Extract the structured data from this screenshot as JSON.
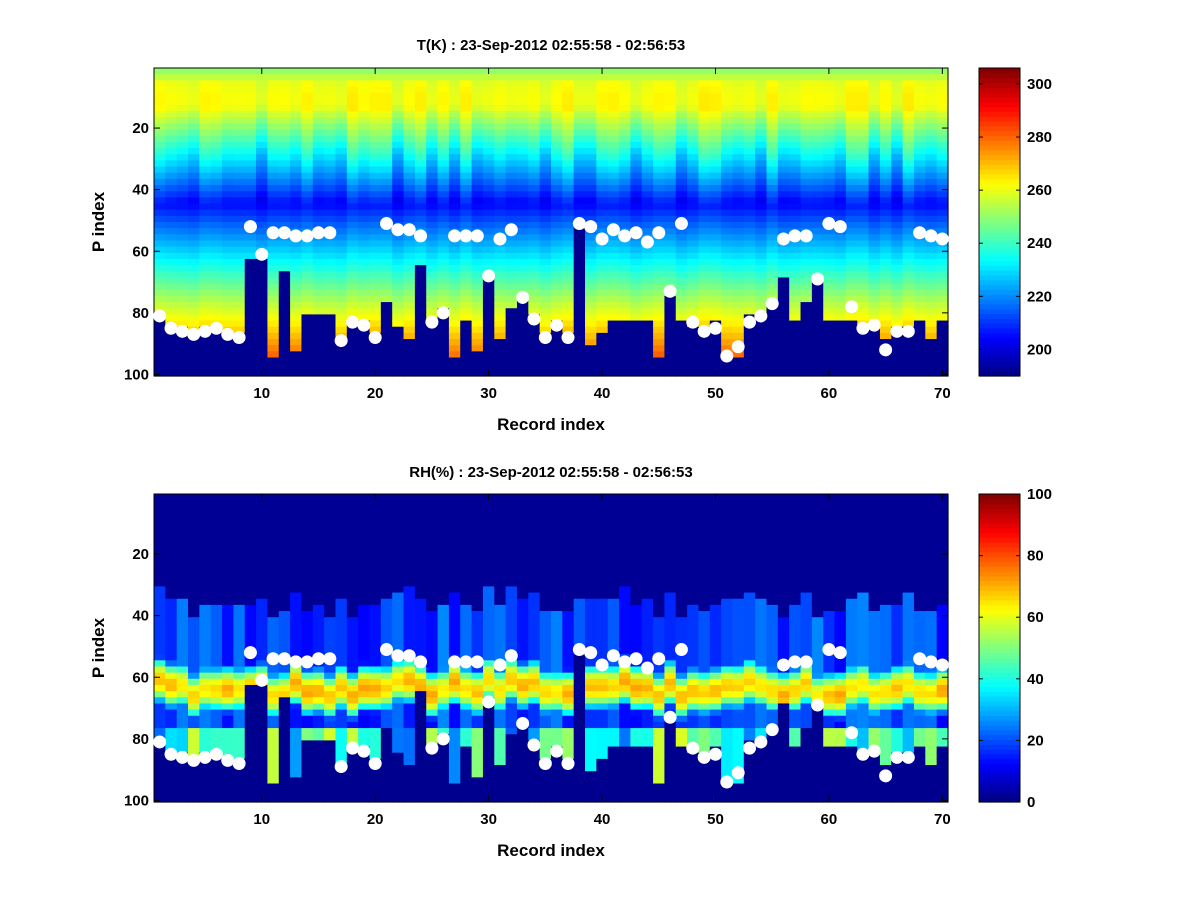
{
  "chart_data": [
    {
      "type": "heatmap",
      "title": "T(K) : 23-Sep-2012 02:55:58 - 02:56:53",
      "xlabel": "Record index",
      "ylabel": "P index",
      "xlim": [
        0.5,
        70.5
      ],
      "ylim": [
        0.5,
        100.5
      ],
      "y_reversed": true,
      "xticks": [
        10,
        20,
        30,
        40,
        50,
        60,
        70
      ],
      "yticks": [
        20,
        40,
        60,
        80,
        100
      ],
      "colormap": "jet",
      "clim": [
        190,
        306
      ],
      "colorbar_ticks": [
        200,
        220,
        240,
        260,
        280,
        300
      ],
      "profile_model": {
        "surface_value": 276,
        "warm_peak_index": 10,
        "warm_peak_value": 262,
        "cold_min_index": 44,
        "cold_min_value": 205
      },
      "cutoff": [
        80,
        84,
        85,
        86,
        85,
        85,
        86,
        87,
        63,
        63,
        95,
        66,
        93,
        81,
        81,
        81,
        88,
        82,
        82,
        86,
        76,
        84,
        89,
        65,
        82,
        79,
        94,
        82,
        93,
        69,
        89,
        79,
        74,
        80,
        86,
        83,
        86,
        52,
        90,
        86,
        82,
        83,
        82,
        82,
        94,
        74,
        82,
        85,
        84,
        83,
        94,
        95,
        81,
        80,
        76,
        68,
        83,
        76,
        69,
        82,
        82,
        82,
        84,
        84,
        88,
        85,
        84,
        83,
        89,
        83
      ],
      "marker_series": [
        {
          "name": "lower",
          "color": "#ffffff",
          "values": [
            81,
            85,
            86,
            87,
            86,
            85,
            87,
            88,
            null,
            61,
            null,
            null,
            null,
            null,
            null,
            null,
            89,
            83,
            84,
            88,
            null,
            null,
            null,
            null,
            83,
            80,
            null,
            null,
            null,
            68,
            null,
            null,
            75,
            82,
            88,
            84,
            88,
            null,
            null,
            null,
            null,
            null,
            null,
            null,
            null,
            73,
            null,
            83,
            86,
            85,
            94,
            91,
            83,
            81,
            77,
            null,
            null,
            null,
            69,
            null,
            null,
            78,
            85,
            84,
            92,
            86,
            86,
            null,
            null,
            null
          ]
        },
        {
          "name": "upper",
          "color": "#ffffff",
          "values": [
            null,
            null,
            null,
            null,
            null,
            null,
            null,
            null,
            52,
            null,
            54,
            54,
            55,
            55,
            54,
            54,
            null,
            null,
            null,
            null,
            51,
            53,
            53,
            55,
            null,
            null,
            55,
            55,
            55,
            null,
            56,
            53,
            null,
            null,
            null,
            null,
            null,
            51,
            52,
            56,
            53,
            55,
            54,
            57,
            54,
            null,
            51,
            null,
            null,
            null,
            null,
            null,
            null,
            null,
            null,
            56,
            55,
            55,
            null,
            51,
            52,
            null,
            null,
            null,
            null,
            null,
            null,
            54,
            55,
            56
          ]
        }
      ]
    },
    {
      "type": "heatmap",
      "title": "RH(%) : 23-Sep-2012 02:55:58 - 02:56:53",
      "xlabel": "Record index",
      "ylabel": "P index",
      "xlim": [
        0.5,
        70.5
      ],
      "ylim": [
        0.5,
        100.5
      ],
      "y_reversed": true,
      "xticks": [
        10,
        20,
        30,
        40,
        50,
        60,
        70
      ],
      "yticks": [
        20,
        40,
        60,
        80,
        100
      ],
      "colormap": "jet",
      "clim": [
        0,
        100
      ],
      "colorbar_ticks": [
        0,
        20,
        40,
        60,
        80,
        100
      ],
      "profile_model": {
        "moist_layer_center": 63,
        "moist_layer_peak": 72,
        "moist_layer_halfwidth": 6,
        "background": 2,
        "mid_level": 12
      },
      "cutoff": [
        80,
        84,
        85,
        86,
        85,
        85,
        86,
        87,
        63,
        63,
        95,
        66,
        93,
        81,
        81,
        81,
        88,
        82,
        82,
        86,
        76,
        84,
        89,
        65,
        82,
        79,
        94,
        82,
        93,
        69,
        89,
        79,
        74,
        80,
        86,
        83,
        86,
        52,
        90,
        86,
        82,
        83,
        82,
        82,
        94,
        74,
        82,
        85,
        84,
        83,
        94,
        95,
        81,
        80,
        76,
        68,
        83,
        76,
        69,
        82,
        82,
        82,
        84,
        84,
        88,
        85,
        84,
        83,
        89,
        83
      ],
      "marker_series": [
        {
          "name": "lower",
          "color": "#ffffff",
          "same_as": "T(K) lower"
        },
        {
          "name": "upper",
          "color": "#ffffff",
          "same_as": "T(K) upper"
        }
      ]
    }
  ]
}
